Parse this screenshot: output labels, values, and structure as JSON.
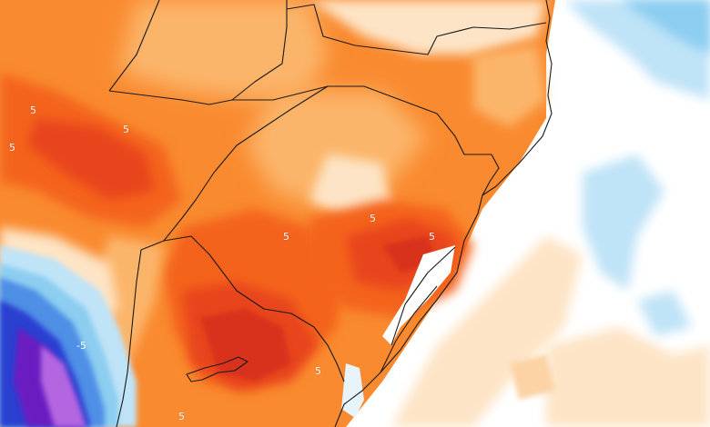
{
  "map": {
    "contour_labels": [
      "5",
      "5",
      "5",
      "5",
      "5",
      "5",
      "5",
      "5",
      "-5"
    ]
  },
  "colors": {
    "ocean_white": "#ffffff",
    "pale_peach": "#fde4c6",
    "light_orange": "#fbb56a",
    "orange": "#f98a2f",
    "deep_orange": "#f4641c",
    "red_orange": "#e8451b",
    "red": "#d8321d",
    "light_blue": "#bfe3f7",
    "sky_blue": "#8ccdf0",
    "mid_blue": "#4f8fe6",
    "deep_blue": "#2b3fd1",
    "purple": "#6a1fc1",
    "violet": "#b466e0",
    "border_line": "#1a1a1a"
  }
}
